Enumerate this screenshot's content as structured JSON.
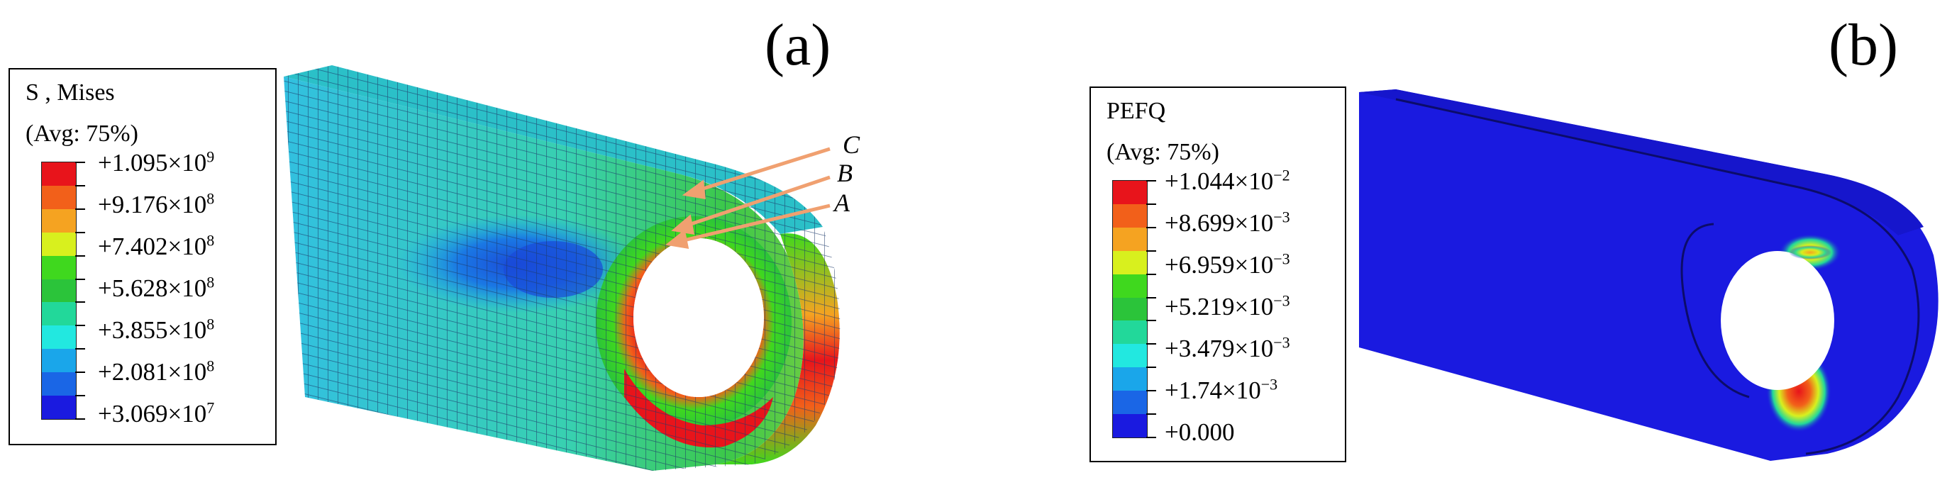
{
  "figure_a": {
    "panel_label": "(a)",
    "legend": {
      "title": "S , Mises",
      "avg": "(Avg: 75%)",
      "colors": [
        "#e8141b",
        "#f2601a",
        "#f5a321",
        "#d8f01e",
        "#3fd81e",
        "#2bc43a",
        "#22d89a",
        "#22e8e0",
        "#1aa6ea",
        "#1a66e6",
        "#1a1ae0"
      ],
      "values": [
        {
          "mantissa": "+1.095×10",
          "exp": "9"
        },
        {
          "mantissa": "+9.176×10",
          "exp": "8"
        },
        {
          "mantissa": "+7.402×10",
          "exp": "8"
        },
        {
          "mantissa": "+5.628×10",
          "exp": "8"
        },
        {
          "mantissa": "+3.855×10",
          "exp": "8"
        },
        {
          "mantissa": "+2.081×10",
          "exp": "8"
        },
        {
          "mantissa": "+3.069×10",
          "exp": "7"
        }
      ]
    },
    "points": [
      "C",
      "B",
      "A"
    ],
    "arrow_color": "#f0a070"
  },
  "figure_b": {
    "panel_label": "(b)",
    "legend": {
      "title": "PEFQ",
      "avg": "(Avg: 75%)",
      "colors": [
        "#e8141b",
        "#f2601a",
        "#f5a321",
        "#d8f01e",
        "#3fd81e",
        "#2bc43a",
        "#22d89a",
        "#22e8e0",
        "#1aa6ea",
        "#1a66e6",
        "#1a1ae0"
      ],
      "values": [
        {
          "mantissa": "+1.044×10",
          "exp": "−2"
        },
        {
          "mantissa": "+8.699×10",
          "exp": "−3"
        },
        {
          "mantissa": "+6.959×10",
          "exp": "−3"
        },
        {
          "mantissa": "+5.219×10",
          "exp": "−3"
        },
        {
          "mantissa": "+3.479×10",
          "exp": "−3"
        },
        {
          "mantissa": "+1.74×10",
          "exp": "−3"
        },
        {
          "mantissa": "+0.000",
          "exp": ""
        }
      ]
    }
  }
}
